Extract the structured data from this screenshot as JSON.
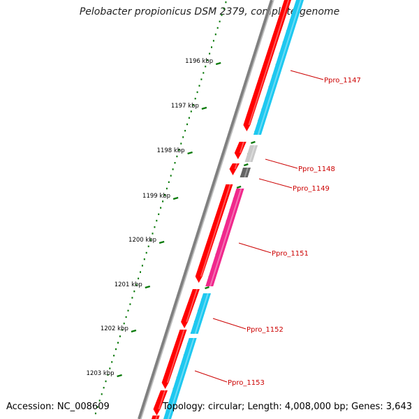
{
  "title": "Pelobacter propionicus DSM 2379, complete genome",
  "accession": "Accession: NC_008609",
  "summary": "Topology: circular; Length: 4,008,000 bp; Genes: 3,643",
  "ruler_labels": [
    "1196 kbp",
    "1197 kbp",
    "1198 kbp",
    "1199 kbp",
    "1200 kbp",
    "1201 kbp",
    "1202 kbp",
    "1203 kbp"
  ],
  "gene_labels": [
    "Ppro_1147",
    "Ppro_1148",
    "Ppro_1149",
    "Ppro_1151",
    "Ppro_1152",
    "Ppro_1153"
  ],
  "colors": {
    "backbone": "#808080",
    "cds": "#ff0000",
    "cds_dark": "#c00000",
    "blast_cyan": "#1ec8f0",
    "blast_pink": "#f0288c",
    "blast_light_gray": "#c8c8c8",
    "blast_dark_gray": "#646464",
    "gc_tick": "#0a7a0a",
    "label": "#cc0000"
  }
}
